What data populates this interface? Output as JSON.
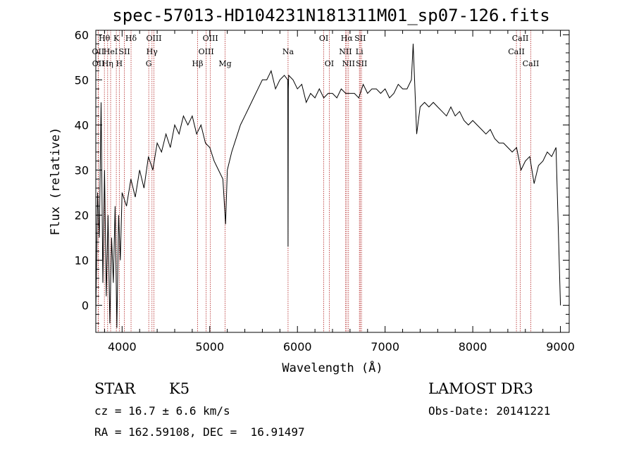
{
  "header": {
    "title": "spec-57013-HD104231N181311M01_sp07-126.fits"
  },
  "info": {
    "class_type": "STAR",
    "subclass": "K5",
    "survey": "LAMOST DR3",
    "redshift": "cz = 16.7 ± 6.6 km/s",
    "obs_date": "Obs-Date: 20141221",
    "coords": "RA = 162.59108, DEC =  16.91497"
  },
  "chart_data": {
    "type": "line",
    "title": "spec-57013-HD104231N181311M01_sp07-126.fits",
    "xlabel": "Wavelength (Å)",
    "ylabel": "Flux (relative)",
    "xlim": [
      3700,
      9100
    ],
    "ylim": [
      -6,
      61
    ],
    "xticks": [
      4000,
      5000,
      6000,
      7000,
      8000,
      9000
    ],
    "yticks": [
      0,
      10,
      20,
      30,
      40,
      50,
      60
    ],
    "line_color": "#000000",
    "marker_color": "#b22222",
    "series": [
      {
        "x": [
          3700,
          3720,
          3740,
          3760,
          3780,
          3800,
          3820,
          3840,
          3860,
          3880,
          3900,
          3920,
          3940,
          3960,
          3980,
          4000,
          4050,
          4100,
          4150,
          4200,
          4250,
          4300,
          4350,
          4400,
          4450,
          4500,
          4550,
          4600,
          4650,
          4700,
          4750,
          4800,
          4850,
          4900,
          4950,
          5000,
          5050,
          5100,
          5150,
          5180,
          5200,
          5250,
          5300,
          5350,
          5400,
          5450,
          5500,
          5550,
          5600,
          5650,
          5700,
          5750,
          5800,
          5850,
          5890,
          5893,
          5896,
          5900,
          5950,
          6000,
          6050,
          6100,
          6150,
          6200,
          6250,
          6300,
          6350,
          6400,
          6450,
          6500,
          6550,
          6600,
          6650,
          6700,
          6750,
          6800,
          6850,
          6900,
          6950,
          7000,
          7050,
          7100,
          7150,
          7200,
          7250,
          7300,
          7320,
          7340,
          7360,
          7400,
          7450,
          7500,
          7550,
          7600,
          7650,
          7700,
          7750,
          7800,
          7850,
          7900,
          7950,
          8000,
          8050,
          8100,
          8150,
          8200,
          8250,
          8300,
          8350,
          8400,
          8450,
          8500,
          8550,
          8600,
          8650,
          8700,
          8750,
          8800,
          8850,
          8900,
          8950,
          9000
        ],
        "y": [
          -2,
          25,
          15,
          45,
          5,
          30,
          2,
          20,
          -4,
          15,
          5,
          22,
          -5,
          20,
          10,
          25,
          22,
          28,
          24,
          30,
          26,
          33,
          30,
          36,
          34,
          38,
          35,
          40,
          38,
          42,
          40,
          42,
          38,
          40,
          36,
          35,
          32,
          30,
          28,
          18,
          30,
          34,
          37,
          40,
          42,
          44,
          46,
          48,
          50,
          50,
          52,
          48,
          50,
          51,
          50,
          13,
          48,
          51,
          50,
          48,
          49,
          45,
          47,
          46,
          48,
          46,
          47,
          47,
          46,
          48,
          47,
          47,
          47,
          46,
          49,
          47,
          48,
          48,
          47,
          48,
          46,
          47,
          49,
          48,
          48,
          50,
          58,
          48,
          38,
          44,
          45,
          44,
          45,
          44,
          43,
          42,
          44,
          42,
          43,
          41,
          40,
          41,
          40,
          39,
          38,
          39,
          37,
          36,
          36,
          35,
          34,
          35,
          30,
          32,
          33,
          27,
          31,
          32,
          34,
          33,
          35,
          0
        ]
      }
    ],
    "markers": [
      {
        "wave": 3798,
        "label": "Hθ",
        "row": 1
      },
      {
        "wave": 3835,
        "label": "Hη",
        "row": 3
      },
      {
        "wave": 3869,
        "label": "HeI",
        "row": 2
      },
      {
        "wave": 3934,
        "label": "K",
        "row": 1
      },
      {
        "wave": 3968,
        "label": "H",
        "row": 3
      },
      {
        "wave": 4026,
        "label": "SII",
        "row": 2
      },
      {
        "wave": 4102,
        "label": "Hδ",
        "row": 1
      },
      {
        "wave": 4304,
        "label": "G",
        "row": 3
      },
      {
        "wave": 4341,
        "label": "Hγ",
        "row": 2
      },
      {
        "wave": 4363,
        "label": "OIII",
        "row": 1
      },
      {
        "wave": 4861,
        "label": "Hβ",
        "row": 3
      },
      {
        "wave": 4959,
        "label": "OIII",
        "row": 2
      },
      {
        "wave": 5007,
        "label": "OIII",
        "row": 1
      },
      {
        "wave": 5175,
        "label": "Mg",
        "row": 3
      },
      {
        "wave": 5893,
        "label": "Na",
        "row": 2
      },
      {
        "wave": 6300,
        "label": "OI",
        "row": 1
      },
      {
        "wave": 6363,
        "label": "OI",
        "row": 3
      },
      {
        "wave": 6548,
        "label": "NII",
        "row": 2
      },
      {
        "wave": 6563,
        "label": "Hα",
        "row": 1
      },
      {
        "wave": 6583,
        "label": "NII",
        "row": 3
      },
      {
        "wave": 6707,
        "label": "Li",
        "row": 2
      },
      {
        "wave": 6716,
        "label": "SII",
        "row": 1
      },
      {
        "wave": 6731,
        "label": "SII",
        "row": 3
      },
      {
        "wave": 8498,
        "label": "CaII",
        "row": 2
      },
      {
        "wave": 8542,
        "label": "CaII",
        "row": 1
      },
      {
        "wave": 8662,
        "label": "CaII",
        "row": 3
      },
      {
        "wave": 3727,
        "label": "OII",
        "row": 2
      },
      {
        "wave": 3729,
        "label": "OII",
        "row": 3
      }
    ]
  }
}
